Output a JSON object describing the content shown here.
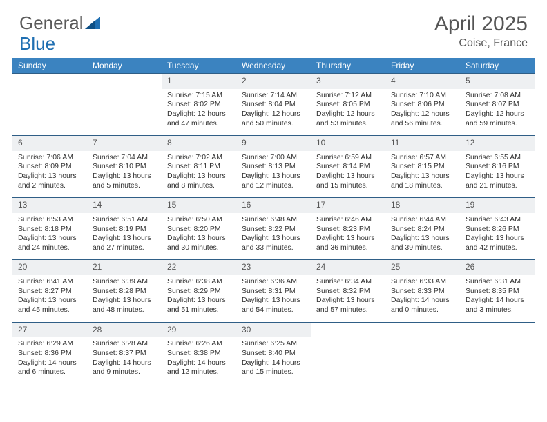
{
  "brand": {
    "part1": "General",
    "part2": "Blue"
  },
  "title": "April 2025",
  "location": "Coise, France",
  "colors": {
    "header_bg": "#3b83c0",
    "header_text": "#ffffff",
    "daynum_bg": "#eef0f2",
    "row_border": "#2f5e86",
    "body_text": "#333333",
    "title_text": "#555555",
    "logo_gray": "#5a5a5a",
    "logo_blue": "#1f6fb2"
  },
  "weekdays": [
    "Sunday",
    "Monday",
    "Tuesday",
    "Wednesday",
    "Thursday",
    "Friday",
    "Saturday"
  ],
  "weeks": [
    [
      null,
      null,
      {
        "n": "1",
        "sr": "7:15 AM",
        "ss": "8:02 PM",
        "dl": "12 hours and 47 minutes."
      },
      {
        "n": "2",
        "sr": "7:14 AM",
        "ss": "8:04 PM",
        "dl": "12 hours and 50 minutes."
      },
      {
        "n": "3",
        "sr": "7:12 AM",
        "ss": "8:05 PM",
        "dl": "12 hours and 53 minutes."
      },
      {
        "n": "4",
        "sr": "7:10 AM",
        "ss": "8:06 PM",
        "dl": "12 hours and 56 minutes."
      },
      {
        "n": "5",
        "sr": "7:08 AM",
        "ss": "8:07 PM",
        "dl": "12 hours and 59 minutes."
      }
    ],
    [
      {
        "n": "6",
        "sr": "7:06 AM",
        "ss": "8:09 PM",
        "dl": "13 hours and 2 minutes."
      },
      {
        "n": "7",
        "sr": "7:04 AM",
        "ss": "8:10 PM",
        "dl": "13 hours and 5 minutes."
      },
      {
        "n": "8",
        "sr": "7:02 AM",
        "ss": "8:11 PM",
        "dl": "13 hours and 8 minutes."
      },
      {
        "n": "9",
        "sr": "7:00 AM",
        "ss": "8:13 PM",
        "dl": "13 hours and 12 minutes."
      },
      {
        "n": "10",
        "sr": "6:59 AM",
        "ss": "8:14 PM",
        "dl": "13 hours and 15 minutes."
      },
      {
        "n": "11",
        "sr": "6:57 AM",
        "ss": "8:15 PM",
        "dl": "13 hours and 18 minutes."
      },
      {
        "n": "12",
        "sr": "6:55 AM",
        "ss": "8:16 PM",
        "dl": "13 hours and 21 minutes."
      }
    ],
    [
      {
        "n": "13",
        "sr": "6:53 AM",
        "ss": "8:18 PM",
        "dl": "13 hours and 24 minutes."
      },
      {
        "n": "14",
        "sr": "6:51 AM",
        "ss": "8:19 PM",
        "dl": "13 hours and 27 minutes."
      },
      {
        "n": "15",
        "sr": "6:50 AM",
        "ss": "8:20 PM",
        "dl": "13 hours and 30 minutes."
      },
      {
        "n": "16",
        "sr": "6:48 AM",
        "ss": "8:22 PM",
        "dl": "13 hours and 33 minutes."
      },
      {
        "n": "17",
        "sr": "6:46 AM",
        "ss": "8:23 PM",
        "dl": "13 hours and 36 minutes."
      },
      {
        "n": "18",
        "sr": "6:44 AM",
        "ss": "8:24 PM",
        "dl": "13 hours and 39 minutes."
      },
      {
        "n": "19",
        "sr": "6:43 AM",
        "ss": "8:26 PM",
        "dl": "13 hours and 42 minutes."
      }
    ],
    [
      {
        "n": "20",
        "sr": "6:41 AM",
        "ss": "8:27 PM",
        "dl": "13 hours and 45 minutes."
      },
      {
        "n": "21",
        "sr": "6:39 AM",
        "ss": "8:28 PM",
        "dl": "13 hours and 48 minutes."
      },
      {
        "n": "22",
        "sr": "6:38 AM",
        "ss": "8:29 PM",
        "dl": "13 hours and 51 minutes."
      },
      {
        "n": "23",
        "sr": "6:36 AM",
        "ss": "8:31 PM",
        "dl": "13 hours and 54 minutes."
      },
      {
        "n": "24",
        "sr": "6:34 AM",
        "ss": "8:32 PM",
        "dl": "13 hours and 57 minutes."
      },
      {
        "n": "25",
        "sr": "6:33 AM",
        "ss": "8:33 PM",
        "dl": "14 hours and 0 minutes."
      },
      {
        "n": "26",
        "sr": "6:31 AM",
        "ss": "8:35 PM",
        "dl": "14 hours and 3 minutes."
      }
    ],
    [
      {
        "n": "27",
        "sr": "6:29 AM",
        "ss": "8:36 PM",
        "dl": "14 hours and 6 minutes."
      },
      {
        "n": "28",
        "sr": "6:28 AM",
        "ss": "8:37 PM",
        "dl": "14 hours and 9 minutes."
      },
      {
        "n": "29",
        "sr": "6:26 AM",
        "ss": "8:38 PM",
        "dl": "14 hours and 12 minutes."
      },
      {
        "n": "30",
        "sr": "6:25 AM",
        "ss": "8:40 PM",
        "dl": "14 hours and 15 minutes."
      },
      null,
      null,
      null
    ]
  ],
  "labels": {
    "sunrise": "Sunrise: ",
    "sunset": "Sunset: ",
    "daylight": "Daylight: "
  }
}
